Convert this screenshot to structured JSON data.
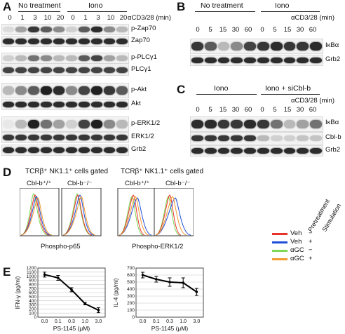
{
  "panels": [
    "A",
    "B",
    "C",
    "D",
    "E"
  ],
  "panelA": {
    "groups": [
      "No treatment",
      "Iono"
    ],
    "time_label": "αCD3/28 (min)",
    "lanes": [
      "0",
      "1",
      "3",
      "10",
      "20",
      "0",
      "1",
      "3",
      "10",
      "20"
    ],
    "blots": [
      "p-Zap70",
      "Zap70",
      "p-PLCγ1",
      "PLCγ1",
      "p-Akt",
      "Akt",
      "p-ERK1/2",
      "ERK1/2",
      "Grb2"
    ]
  },
  "panelB": {
    "groups": [
      "No treatment",
      "Iono"
    ],
    "time_label": "αCD3/28 (min)",
    "lanes": [
      "0",
      "5",
      "15",
      "30",
      "60",
      "0",
      "5",
      "15",
      "30",
      "60"
    ],
    "blots": [
      "IκBα",
      "Grb2"
    ]
  },
  "panelC": {
    "groups": [
      "Iono",
      "Iono + siCbl-b"
    ],
    "time_label": "αCD3/28 (min)",
    "lanes": [
      "0",
      "5",
      "15",
      "30",
      "60",
      "0",
      "5",
      "15",
      "30",
      "60"
    ],
    "blots": [
      "IκBα",
      "Cbl-b",
      "Grb2"
    ]
  },
  "panelD": {
    "gate_left": "TCRβ⁺ NK1.1⁺ cells gated",
    "gate_right": "TCRβ⁺ NK1.1⁺ cells gated",
    "genotypes": [
      "Cbl-b⁺/⁺",
      "Cbl-b⁻/⁻",
      "Cbl-b⁺/⁺",
      "Cbl-b⁻/⁻"
    ],
    "xlabel_left": "Phospho-p65",
    "xlabel_right": "Phospho-ERK1/2",
    "legend_headers": [
      "Pretreatment",
      "Stimulation"
    ],
    "legend": [
      {
        "name": "Veh",
        "stim": "−",
        "color": "#e8322a"
      },
      {
        "name": "Veh",
        "stim": "+",
        "color": "#1f4fd8"
      },
      {
        "name": "αGC",
        "stim": "−",
        "color": "#7ed957"
      },
      {
        "name": "αGC",
        "stim": "+",
        "color": "#f29b2e"
      }
    ]
  },
  "panelE": {
    "chart_data": [
      {
        "type": "line",
        "x": [
          "0.0",
          "0.1",
          "0.3",
          "1.0",
          "3.0"
        ],
        "values": [
          1040,
          960,
          670,
          330,
          170
        ],
        "errors": [
          60,
          60,
          50,
          30,
          60
        ],
        "ylabel": "IFN-γ (pg/ml)",
        "xlabel": "PS-1145 (μM)",
        "ylim": [
          0,
          1200
        ],
        "yticks": [
          "0",
          "100",
          "200",
          "300",
          "400",
          "500",
          "600",
          "700",
          "800",
          "900",
          "1000",
          "1100",
          "1200"
        ],
        "grid": true
      },
      {
        "type": "line",
        "x": [
          "0.0",
          "0.1",
          "0.3",
          "1.0",
          "3.0"
        ],
        "values": [
          600,
          540,
          500,
          490,
          360
        ],
        "errors": [
          40,
          40,
          60,
          70,
          50
        ],
        "ylabel": "IL-4 (pg/ml)",
        "xlabel": "PS-1145 (μM)",
        "ylim": [
          0,
          700
        ],
        "yticks": [
          "0",
          "100",
          "200",
          "300",
          "400",
          "500",
          "600",
          "700"
        ],
        "grid": true
      }
    ]
  }
}
